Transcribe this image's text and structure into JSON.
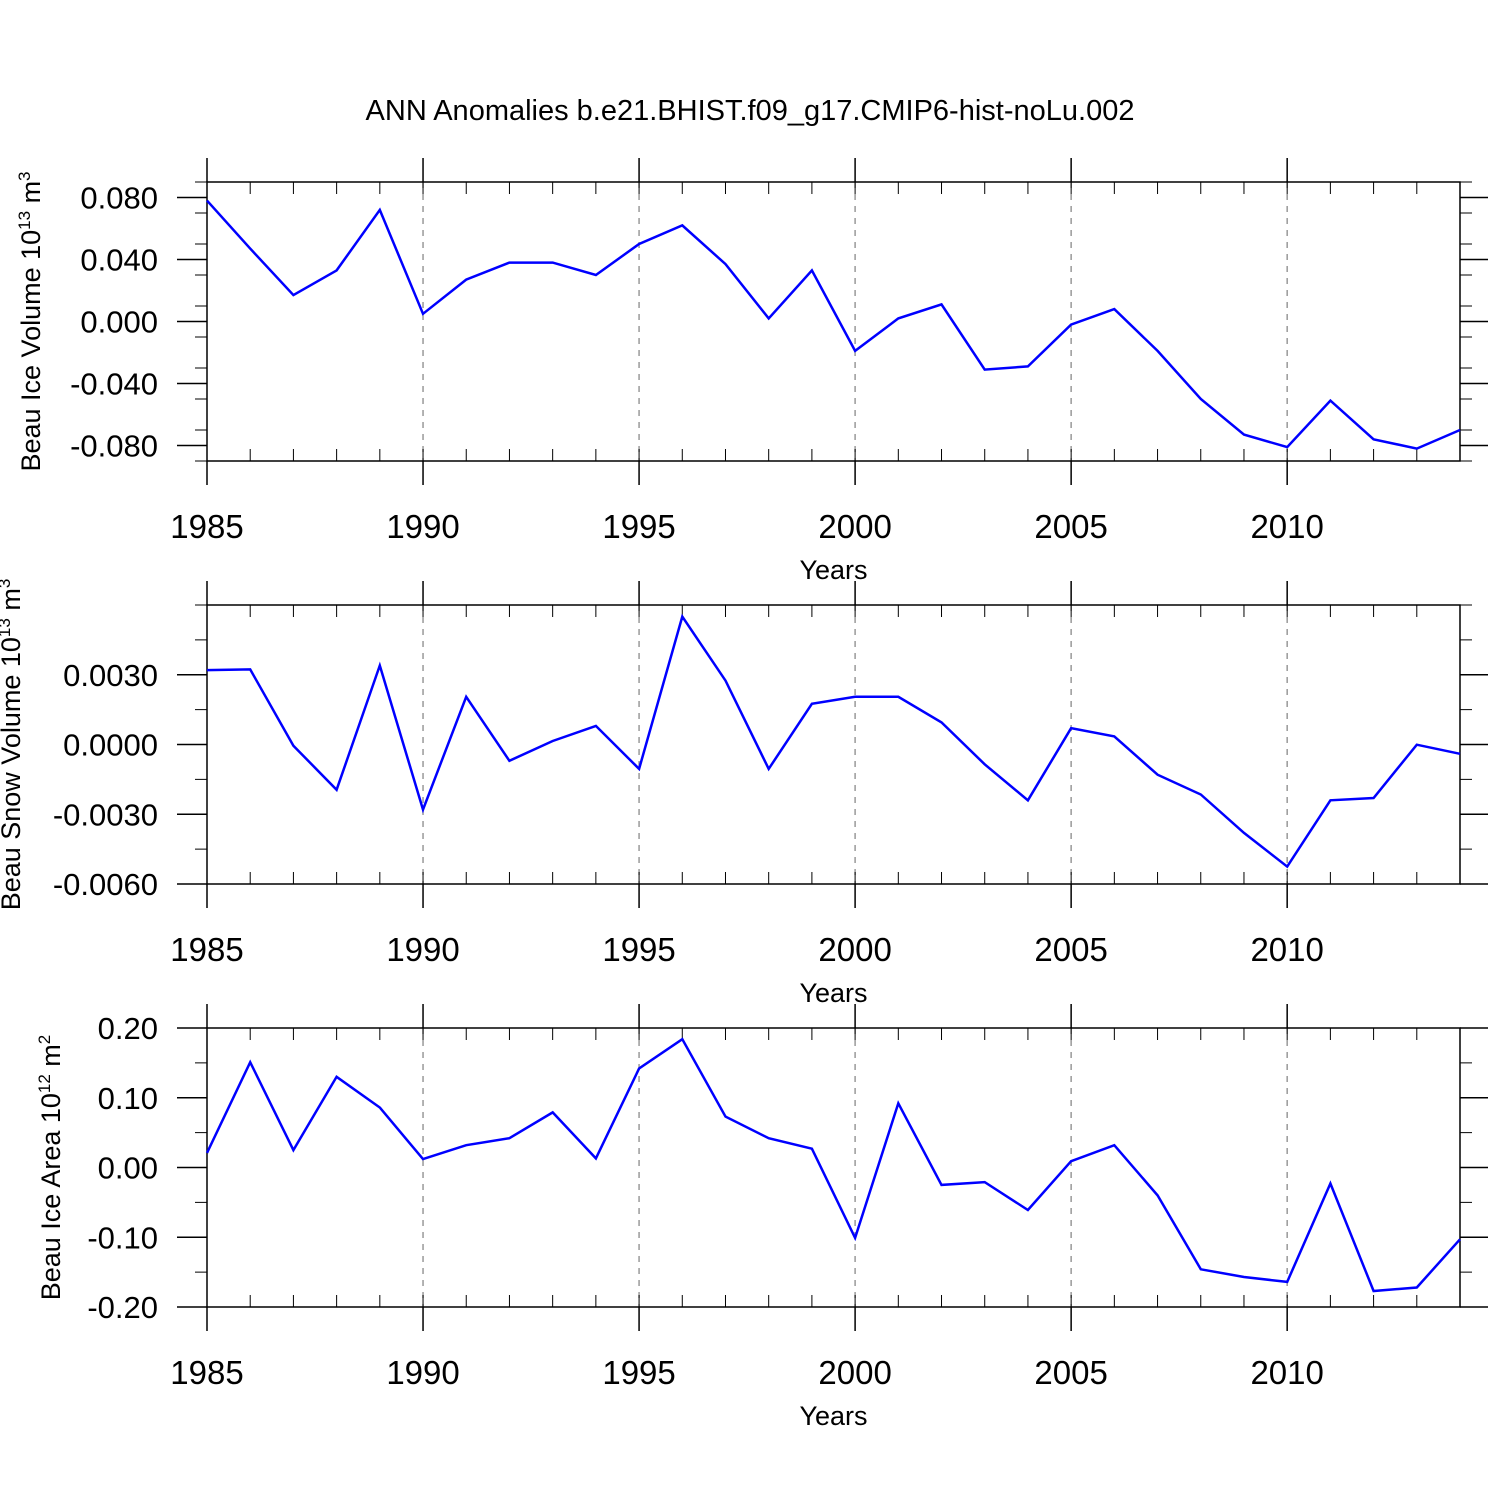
{
  "title": "ANN Anomalies b.e21.BHIST.f09_g17.CMIP6-hist-noLu.002",
  "line_color": "#0000ff",
  "grid_color": "#999999",
  "chart_data": [
    {
      "type": "line",
      "ylabel_main": "Beau Ice Volume 10",
      "ylabel_sup": "13",
      "ylabel_unit": " m",
      "ylabel_unit_sup": "3",
      "xlabel": "Years",
      "xlim": [
        1985,
        2014
      ],
      "ylim": [
        -0.09,
        0.09
      ],
      "yticks": [
        -0.08,
        -0.04,
        0.0,
        0.04,
        0.08
      ],
      "ytick_labels": [
        "-0.080",
        "-0.040",
        "0.000",
        "0.040",
        "0.080"
      ],
      "xticks": [
        1985,
        1990,
        1995,
        2000,
        2005,
        2010
      ],
      "xtick_labels": [
        "1985",
        "1990",
        "1995",
        "2000",
        "2005",
        "2010"
      ],
      "grid_x": [
        1990,
        1995,
        2000,
        2005,
        2010
      ],
      "x": [
        1985,
        1986,
        1987,
        1988,
        1989,
        1990,
        1991,
        1992,
        1993,
        1994,
        1995,
        1996,
        1997,
        1998,
        1999,
        2000,
        2001,
        2002,
        2003,
        2004,
        2005,
        2006,
        2007,
        2008,
        2009,
        2010,
        2011,
        2012,
        2013,
        2014
      ],
      "y": [
        0.078,
        0.047,
        0.017,
        0.033,
        0.072,
        0.005,
        0.027,
        0.038,
        0.038,
        0.03,
        0.05,
        0.062,
        0.037,
        0.002,
        0.033,
        -0.019,
        0.002,
        0.011,
        -0.031,
        -0.029,
        -0.002,
        0.008,
        -0.019,
        -0.05,
        -0.073,
        -0.081,
        -0.051,
        -0.076,
        -0.082,
        -0.07
      ]
    },
    {
      "type": "line",
      "ylabel_main": "Beau Snow Volume 10",
      "ylabel_sup": "13",
      "ylabel_unit": " m",
      "ylabel_unit_sup": "3",
      "xlabel": "Years",
      "xlim": [
        1985,
        2014
      ],
      "ylim": [
        -0.006,
        0.006
      ],
      "yticks": [
        -0.006,
        -0.003,
        0.0,
        0.003
      ],
      "ytick_labels": [
        "-0.0060",
        "-0.0030",
        "0.0000",
        "0.0030"
      ],
      "xticks": [
        1985,
        1990,
        1995,
        2000,
        2005,
        2010
      ],
      "xtick_labels": [
        "1985",
        "1990",
        "1995",
        "2000",
        "2005",
        "2010"
      ],
      "grid_x": [
        1990,
        1995,
        2000,
        2005,
        2010
      ],
      "x": [
        1985,
        1986,
        1987,
        1988,
        1989,
        1990,
        1991,
        1992,
        1993,
        1994,
        1995,
        1996,
        1997,
        1998,
        1999,
        2000,
        2001,
        2002,
        2003,
        2004,
        2005,
        2006,
        2007,
        2008,
        2009,
        2010,
        2011,
        2012,
        2013,
        2014
      ],
      "y": [
        0.0032,
        0.00323,
        -5e-05,
        -0.00195,
        0.0034,
        -0.0028,
        0.00205,
        -0.0007,
        0.00015,
        0.0008,
        -0.00105,
        0.0055,
        0.00275,
        -0.00105,
        0.00175,
        0.00205,
        0.00205,
        0.00095,
        -0.00085,
        -0.0024,
        0.0007,
        0.00035,
        -0.0013,
        -0.00215,
        -0.0038,
        -0.00525,
        -0.0024,
        -0.0023,
        -1e-05,
        -0.0004
      ]
    },
    {
      "type": "line",
      "ylabel_main": "Beau Ice Area 10",
      "ylabel_sup": "12",
      "ylabel_unit": " m",
      "ylabel_unit_sup": "2",
      "xlabel": "Years",
      "xlim": [
        1985,
        2014
      ],
      "ylim": [
        -0.2,
        0.2
      ],
      "yticks": [
        -0.2,
        -0.1,
        0.0,
        0.1,
        0.2
      ],
      "ytick_labels": [
        "-0.20",
        "-0.10",
        "0.00",
        "0.10",
        "0.20"
      ],
      "xticks": [
        1985,
        1990,
        1995,
        2000,
        2005,
        2010
      ],
      "xtick_labels": [
        "1985",
        "1990",
        "1995",
        "2000",
        "2005",
        "2010"
      ],
      "grid_x": [
        1990,
        1995,
        2000,
        2005,
        2010
      ],
      "x": [
        1985,
        1986,
        1987,
        1988,
        1989,
        1990,
        1991,
        1992,
        1993,
        1994,
        1995,
        1996,
        1997,
        1998,
        1999,
        2000,
        2001,
        2002,
        2003,
        2004,
        2005,
        2006,
        2007,
        2008,
        2009,
        2010,
        2011,
        2012,
        2013,
        2014
      ],
      "y": [
        0.021,
        0.151,
        0.025,
        0.13,
        0.086,
        0.012,
        0.032,
        0.042,
        0.079,
        0.013,
        0.142,
        0.184,
        0.073,
        0.042,
        0.027,
        -0.101,
        0.092,
        -0.025,
        -0.021,
        -0.061,
        0.009,
        0.032,
        -0.04,
        -0.146,
        -0.157,
        -0.164,
        -0.023,
        -0.177,
        -0.172,
        -0.103
      ]
    }
  ]
}
